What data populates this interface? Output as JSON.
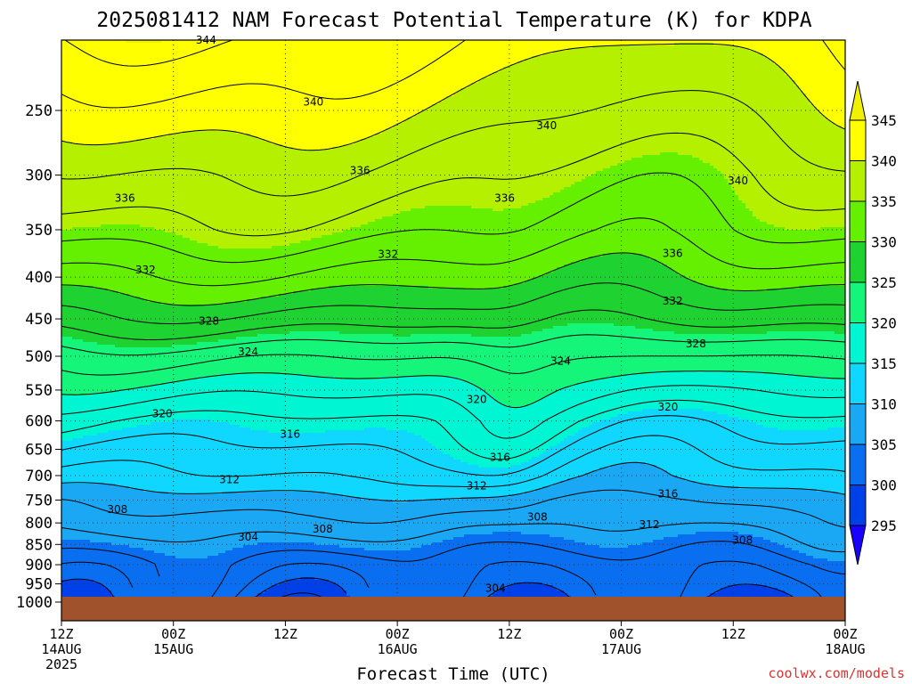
{
  "chart_data": {
    "type": "heatmap",
    "title": "2025081412 NAM Forecast Potential Temperature (K) for KDPA",
    "xlabel": "Forecast Time (UTC)",
    "ylabel": "",
    "x_range_hours": [
      0,
      84
    ],
    "x_ticks": [
      {
        "hour": 0,
        "lines": [
          "12Z",
          "14AUG",
          "2025"
        ]
      },
      {
        "hour": 12,
        "lines": [
          "00Z",
          "15AUG"
        ]
      },
      {
        "hour": 24,
        "lines": [
          "12Z"
        ]
      },
      {
        "hour": 36,
        "lines": [
          "00Z",
          "16AUG"
        ]
      },
      {
        "hour": 48,
        "lines": [
          "12Z"
        ]
      },
      {
        "hour": 60,
        "lines": [
          "00Z",
          "17AUG"
        ]
      },
      {
        "hour": 72,
        "lines": [
          "12Z"
        ]
      },
      {
        "hour": 84,
        "lines": [
          "00Z",
          "18AUG"
        ]
      }
    ],
    "y_scale": "log",
    "y_ticks": [
      250,
      300,
      350,
      400,
      450,
      500,
      550,
      600,
      650,
      700,
      750,
      800,
      850,
      900,
      950,
      1000
    ],
    "surface_pressure": 985,
    "colorbar": {
      "levels": [
        295,
        300,
        305,
        310,
        315,
        320,
        325,
        330,
        335,
        340,
        345
      ],
      "colors": [
        "#1a00ff",
        "#0040e8",
        "#0a6ef0",
        "#1aa8f5",
        "#10d7ff",
        "#00f5d2",
        "#14f57a",
        "#1ed232",
        "#64f000",
        "#b4f000",
        "#ffff00",
        "#f0f000"
      ]
    },
    "profile_hour0": [
      {
        "p": 1000,
        "theta": 301
      },
      {
        "p": 950,
        "theta": 302
      },
      {
        "p": 900,
        "theta": 303
      },
      {
        "p": 850,
        "theta": 305
      },
      {
        "p": 800,
        "theta": 307
      },
      {
        "p": 750,
        "theta": 309
      },
      {
        "p": 700,
        "theta": 312
      },
      {
        "p": 650,
        "theta": 314
      },
      {
        "p": 600,
        "theta": 316
      },
      {
        "p": 550,
        "theta": 319
      },
      {
        "p": 500,
        "theta": 322.5
      },
      {
        "p": 450,
        "theta": 327
      },
      {
        "p": 400,
        "theta": 331
      },
      {
        "p": 350,
        "theta": 334.5
      },
      {
        "p": 300,
        "theta": 337
      },
      {
        "p": 250,
        "theta": 340
      },
      {
        "p": 200,
        "theta": 343
      }
    ],
    "contour_labels": [
      {
        "value": "344",
        "hour": 15.5,
        "p": 205
      },
      {
        "value": "340",
        "hour": 27,
        "p": 244
      },
      {
        "value": "340",
        "hour": 52,
        "p": 261
      },
      {
        "value": "340",
        "hour": 72.5,
        "p": 305
      },
      {
        "value": "336",
        "hour": 6.8,
        "p": 320
      },
      {
        "value": "336",
        "hour": 32,
        "p": 296
      },
      {
        "value": "336",
        "hour": 47.5,
        "p": 320
      },
      {
        "value": "336",
        "hour": 65.5,
        "p": 374
      },
      {
        "value": "332",
        "hour": 9,
        "p": 392
      },
      {
        "value": "332",
        "hour": 35,
        "p": 375
      },
      {
        "value": "332",
        "hour": 65.5,
        "p": 428
      },
      {
        "value": "328",
        "hour": 15.8,
        "p": 453
      },
      {
        "value": "328",
        "hour": 68,
        "p": 483
      },
      {
        "value": "324",
        "hour": 20,
        "p": 494
      },
      {
        "value": "324",
        "hour": 53.5,
        "p": 507
      },
      {
        "value": "320",
        "hour": 10.8,
        "p": 588
      },
      {
        "value": "320",
        "hour": 44.5,
        "p": 565
      },
      {
        "value": "320",
        "hour": 65,
        "p": 577
      },
      {
        "value": "316",
        "hour": 24.5,
        "p": 623
      },
      {
        "value": "316",
        "hour": 47,
        "p": 665
      },
      {
        "value": "316",
        "hour": 65,
        "p": 737
      },
      {
        "value": "312",
        "hour": 18,
        "p": 708
      },
      {
        "value": "312",
        "hour": 44.5,
        "p": 721
      },
      {
        "value": "312",
        "hour": 63,
        "p": 804
      },
      {
        "value": "308",
        "hour": 6,
        "p": 770
      },
      {
        "value": "308",
        "hour": 28,
        "p": 814
      },
      {
        "value": "308",
        "hour": 51,
        "p": 787
      },
      {
        "value": "308",
        "hour": 73,
        "p": 840
      },
      {
        "value": "304",
        "hour": 20,
        "p": 833
      },
      {
        "value": "304",
        "hour": 46.5,
        "p": 962
      }
    ]
  },
  "footer": {
    "credit": "coolwx.com/models"
  }
}
